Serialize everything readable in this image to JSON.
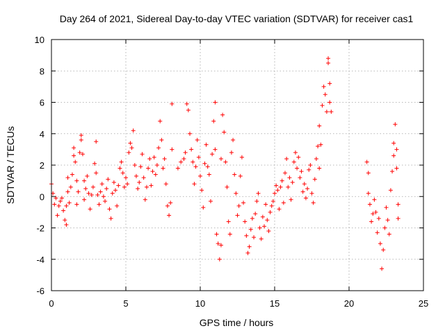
{
  "chart_data": {
    "type": "scatter",
    "title": "Day 264 of 2021, Sidereal Day-to-day VTEC variation (SDTVAR) for receiver cas1",
    "xlabel": "GPS time / hours",
    "ylabel": "SDTVAR / TECUs",
    "xlim": [
      0,
      25
    ],
    "ylim": [
      -6,
      10
    ],
    "xticks": [
      0,
      5,
      10,
      15,
      20,
      25
    ],
    "yticks": [
      -6,
      -4,
      -2,
      0,
      2,
      4,
      6,
      8,
      10
    ],
    "xtick_labels": [
      "0",
      "5",
      "10",
      "15",
      "20",
      "25"
    ],
    "ytick_labels": [
      "-6",
      "-4",
      "-2",
      "0",
      "2",
      "4",
      "6",
      "8",
      "10"
    ],
    "grid": true,
    "marker": "+",
    "color": "#ff0000",
    "series": [
      {
        "name": "cas1",
        "points": [
          [
            0.0,
            0.8
          ],
          [
            0.1,
            0.2
          ],
          [
            0.2,
            -0.5
          ],
          [
            0.3,
            -0.1
          ],
          [
            0.4,
            -1.2
          ],
          [
            0.5,
            -0.6
          ],
          [
            0.6,
            -0.3
          ],
          [
            0.7,
            -0.1
          ],
          [
            0.8,
            -0.9
          ],
          [
            0.9,
            -1.5
          ],
          [
            1.0,
            -1.8
          ],
          [
            1.0,
            -0.6
          ],
          [
            1.1,
            0.3
          ],
          [
            1.1,
            1.2
          ],
          [
            1.2,
            -0.4
          ],
          [
            1.3,
            0.6
          ],
          [
            1.4,
            1.4
          ],
          [
            1.5,
            2.6
          ],
          [
            1.5,
            3.1
          ],
          [
            1.6,
            2.2
          ],
          [
            1.7,
            1.0
          ],
          [
            1.7,
            -0.5
          ],
          [
            1.8,
            0.3
          ],
          [
            1.9,
            2.8
          ],
          [
            2.0,
            3.6
          ],
          [
            2.0,
            3.9
          ],
          [
            2.1,
            2.7
          ],
          [
            2.2,
            1.0
          ],
          [
            2.2,
            -0.2
          ],
          [
            2.3,
            0.5
          ],
          [
            2.4,
            1.3
          ],
          [
            2.5,
            0.2
          ],
          [
            2.6,
            -0.8
          ],
          [
            2.7,
            0.1
          ],
          [
            2.8,
            0.6
          ],
          [
            2.9,
            2.1
          ],
          [
            3.0,
            3.5
          ],
          [
            3.0,
            1.5
          ],
          [
            3.1,
            0.1
          ],
          [
            3.2,
            -0.5
          ],
          [
            3.3,
            0.3
          ],
          [
            3.4,
            0.8
          ],
          [
            3.5,
            0.0
          ],
          [
            3.6,
            -0.3
          ],
          [
            3.7,
            0.5
          ],
          [
            3.8,
            1.1
          ],
          [
            3.9,
            -0.8
          ],
          [
            4.0,
            -1.4
          ],
          [
            4.1,
            0.2
          ],
          [
            4.2,
            0.9
          ],
          [
            4.3,
            0.4
          ],
          [
            4.4,
            -0.6
          ],
          [
            4.5,
            0.7
          ],
          [
            4.6,
            1.8
          ],
          [
            4.7,
            2.2
          ],
          [
            4.8,
            1.5
          ],
          [
            4.9,
            0.6
          ],
          [
            5.0,
            1.2
          ],
          [
            5.1,
            0.8
          ],
          [
            5.2,
            2.8
          ],
          [
            5.3,
            3.4
          ],
          [
            5.4,
            3.1
          ],
          [
            5.5,
            4.2
          ],
          [
            5.6,
            2.0
          ],
          [
            5.7,
            1.3
          ],
          [
            5.8,
            0.5
          ],
          [
            5.9,
            0.9
          ],
          [
            6.0,
            1.9
          ],
          [
            6.1,
            2.7
          ],
          [
            6.2,
            1.2
          ],
          [
            6.3,
            -0.2
          ],
          [
            6.4,
            0.6
          ],
          [
            6.5,
            1.8
          ],
          [
            6.6,
            2.4
          ],
          [
            6.7,
            0.7
          ],
          [
            6.8,
            1.6
          ],
          [
            6.9,
            2.5
          ],
          [
            7.0,
            1.4
          ],
          [
            7.1,
            2.0
          ],
          [
            7.2,
            3.1
          ],
          [
            7.3,
            4.8
          ],
          [
            7.4,
            3.6
          ],
          [
            7.5,
            1.8
          ],
          [
            7.6,
            2.4
          ],
          [
            7.7,
            0.8
          ],
          [
            7.8,
            -0.6
          ],
          [
            7.9,
            -1.2
          ],
          [
            8.0,
            -0.4
          ],
          [
            8.1,
            3.0
          ],
          [
            8.1,
            5.9
          ],
          [
            8.5,
            1.8
          ],
          [
            8.7,
            2.2
          ],
          [
            8.9,
            2.4
          ],
          [
            9.0,
            2.8
          ],
          [
            9.1,
            5.9
          ],
          [
            9.2,
            5.5
          ],
          [
            9.3,
            4.0
          ],
          [
            9.4,
            3.0
          ],
          [
            9.5,
            2.2
          ],
          [
            9.6,
            0.8
          ],
          [
            9.7,
            1.9
          ],
          [
            9.8,
            3.6
          ],
          [
            9.9,
            2.5
          ],
          [
            10.0,
            1.3
          ],
          [
            10.1,
            0.4
          ],
          [
            10.2,
            -0.7
          ],
          [
            10.3,
            2.1
          ],
          [
            10.4,
            3.3
          ],
          [
            10.5,
            1.9
          ],
          [
            10.6,
            1.4
          ],
          [
            10.7,
            -0.3
          ],
          [
            10.8,
            2.7
          ],
          [
            10.9,
            4.8
          ],
          [
            11.0,
            6.0
          ],
          [
            11.0,
            3.0
          ],
          [
            11.1,
            -2.4
          ],
          [
            11.2,
            -3.0
          ],
          [
            11.3,
            -4.0
          ],
          [
            11.4,
            -3.1
          ],
          [
            11.4,
            2.4
          ],
          [
            11.5,
            5.2
          ],
          [
            11.6,
            4.1
          ],
          [
            11.7,
            2.2
          ],
          [
            11.8,
            0.6
          ],
          [
            11.9,
            -1.6
          ],
          [
            12.0,
            -2.4
          ],
          [
            12.1,
            2.8
          ],
          [
            12.2,
            3.6
          ],
          [
            12.3,
            1.4
          ],
          [
            12.4,
            0.2
          ],
          [
            12.5,
            -1.2
          ],
          [
            12.6,
            -0.6
          ],
          [
            12.7,
            1.3
          ],
          [
            12.8,
            2.5
          ],
          [
            12.9,
            -0.4
          ],
          [
            13.0,
            -1.6
          ],
          [
            13.1,
            -2.5
          ],
          [
            13.2,
            -3.6
          ],
          [
            13.3,
            -3.2
          ],
          [
            13.4,
            -2.1
          ],
          [
            13.5,
            -1.4
          ],
          [
            13.6,
            -2.6
          ],
          [
            13.7,
            -1.1
          ],
          [
            13.8,
            -0.3
          ],
          [
            13.9,
            0.2
          ],
          [
            14.0,
            -2.0
          ],
          [
            14.1,
            -2.7
          ],
          [
            14.2,
            -1.3
          ],
          [
            14.3,
            -1.9
          ],
          [
            14.4,
            -0.5
          ],
          [
            14.5,
            -1.5
          ],
          [
            14.6,
            -2.2
          ],
          [
            14.7,
            -1.0
          ],
          [
            14.8,
            -0.6
          ],
          [
            14.9,
            -0.3
          ],
          [
            15.0,
            0.2
          ],
          [
            15.1,
            0.7
          ],
          [
            15.2,
            0.4
          ],
          [
            15.3,
            -0.8
          ],
          [
            15.4,
            0.6
          ],
          [
            15.5,
            1.0
          ],
          [
            15.6,
            -0.4
          ],
          [
            15.7,
            1.5
          ],
          [
            15.8,
            2.4
          ],
          [
            15.9,
            0.6
          ],
          [
            16.0,
            1.2
          ],
          [
            16.1,
            -0.2
          ],
          [
            16.2,
            0.9
          ],
          [
            16.3,
            2.2
          ],
          [
            16.4,
            2.8
          ],
          [
            16.5,
            1.8
          ],
          [
            16.6,
            2.5
          ],
          [
            16.7,
            1.2
          ],
          [
            16.8,
            1.6
          ],
          [
            16.9,
            0.3
          ],
          [
            17.0,
            0.8
          ],
          [
            17.1,
            -0.1
          ],
          [
            17.2,
            0.5
          ],
          [
            17.3,
            1.7
          ],
          [
            17.4,
            2.0
          ],
          [
            17.5,
            0.2
          ],
          [
            17.6,
            -0.4
          ],
          [
            17.7,
            1.1
          ],
          [
            17.8,
            2.4
          ],
          [
            17.9,
            3.2
          ],
          [
            18.0,
            4.5
          ],
          [
            18.0,
            1.8
          ],
          [
            18.1,
            3.3
          ],
          [
            18.2,
            5.8
          ],
          [
            18.3,
            7.0
          ],
          [
            18.4,
            6.5
          ],
          [
            18.5,
            5.4
          ],
          [
            18.6,
            8.8
          ],
          [
            18.6,
            8.5
          ],
          [
            18.7,
            7.2
          ],
          [
            18.7,
            6.0
          ],
          [
            18.8,
            5.4
          ],
          [
            21.2,
            2.2
          ],
          [
            21.3,
            1.5
          ],
          [
            21.3,
            0.2
          ],
          [
            21.4,
            -0.5
          ],
          [
            21.5,
            -1.6
          ],
          [
            21.6,
            -1.1
          ],
          [
            21.7,
            -0.2
          ],
          [
            21.8,
            -1.0
          ],
          [
            21.9,
            -2.3
          ],
          [
            22.0,
            -1.4
          ],
          [
            22.1,
            -3.0
          ],
          [
            22.2,
            -4.6
          ],
          [
            22.3,
            -3.4
          ],
          [
            22.4,
            -2.0
          ],
          [
            22.5,
            -0.7
          ],
          [
            22.6,
            -1.5
          ],
          [
            22.7,
            -2.4
          ],
          [
            22.8,
            0.4
          ],
          [
            22.9,
            1.6
          ],
          [
            23.0,
            2.6
          ],
          [
            23.0,
            3.4
          ],
          [
            23.1,
            4.6
          ],
          [
            23.2,
            3.0
          ],
          [
            23.2,
            1.8
          ],
          [
            23.3,
            -0.5
          ],
          [
            23.3,
            -1.4
          ]
        ]
      }
    ]
  }
}
